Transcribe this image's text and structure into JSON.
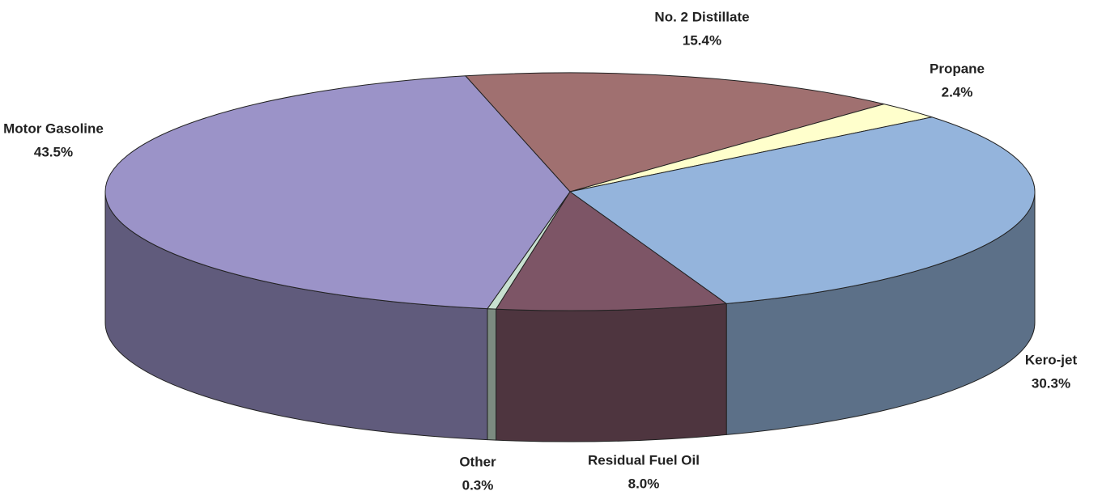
{
  "chart_data": {
    "type": "pie3d",
    "categories": [
      "No. 2 Distillate",
      "Propane",
      "Kero-jet",
      "Residual Fuel Oil",
      "Other",
      "Motor Gasoline"
    ],
    "values": [
      15.4,
      2.4,
      30.3,
      8.0,
      0.3,
      43.5
    ],
    "value_labels": [
      "15.4%",
      "2.4%",
      "30.3%",
      "8.0%",
      "0.3%",
      "43.5%"
    ],
    "colors": [
      "#a07070",
      "#ffffcc",
      "#94b4dc",
      "#7d5566",
      "#c8e0d0",
      "#9b93c8"
    ]
  }
}
